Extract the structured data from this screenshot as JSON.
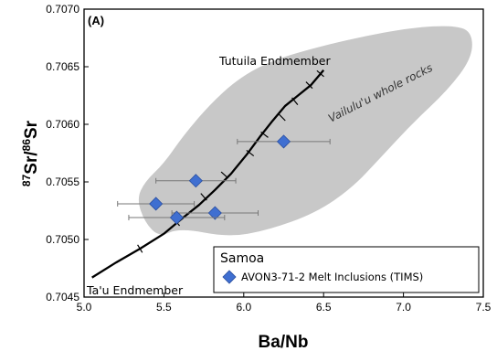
{
  "chart_data": {
    "type": "scatter",
    "panel_label": "(A)",
    "xlabel": "Ba/Nb",
    "ylabel_parts": {
      "sup1": "87",
      "main1": "Sr/",
      "sup2": "86",
      "main2": "Sr"
    },
    "xlim": [
      5.0,
      7.5
    ],
    "ylim": [
      0.7045,
      0.707
    ],
    "x_ticks": [
      "5.0",
      "5.5",
      "6.0",
      "6.5",
      "7.0",
      "7.5"
    ],
    "y_ticks": [
      "0.7045",
      "0.7050",
      "0.7055",
      "0.7060",
      "0.7065",
      "0.7070"
    ],
    "grid": false,
    "legend": {
      "placement": "bottom-right",
      "title": "Samoa",
      "entries": [
        {
          "label": "AVON3-71-2 Melt Inclusions (TIMS)",
          "color": "#3f6fd1",
          "marker": "diamond"
        }
      ]
    },
    "field": {
      "label": "Vailulu'u whole rocks",
      "color": "#c8c8c8",
      "outline": [
        [
          5.6,
          0.7051
        ],
        [
          5.47,
          0.70502
        ],
        [
          5.38,
          0.70515
        ],
        [
          5.33,
          0.70535
        ],
        [
          5.38,
          0.7055
        ],
        [
          5.5,
          0.70566
        ],
        [
          5.62,
          0.7059
        ],
        [
          5.78,
          0.70616
        ],
        [
          5.95,
          0.70638
        ],
        [
          6.15,
          0.70654
        ],
        [
          6.38,
          0.70664
        ],
        [
          6.7,
          0.70675
        ],
        [
          7.05,
          0.70684
        ],
        [
          7.32,
          0.70686
        ],
        [
          7.43,
          0.7068
        ],
        [
          7.43,
          0.70658
        ],
        [
          7.28,
          0.7063
        ],
        [
          7.05,
          0.706
        ],
        [
          6.85,
          0.7057
        ],
        [
          6.68,
          0.70545
        ],
        [
          6.45,
          0.70523
        ],
        [
          6.15,
          0.70508
        ],
        [
          5.9,
          0.70502
        ]
      ]
    },
    "mixing_curve": {
      "points": [
        [
          5.05,
          0.70467
        ],
        [
          5.2,
          0.7048
        ],
        [
          5.35,
          0.70492
        ],
        [
          5.5,
          0.70505
        ],
        [
          5.62,
          0.70519
        ],
        [
          5.72,
          0.7053
        ],
        [
          5.82,
          0.70543
        ],
        [
          5.92,
          0.70557
        ],
        [
          6.02,
          0.70574
        ],
        [
          6.1,
          0.70589
        ],
        [
          6.18,
          0.70603
        ],
        [
          6.26,
          0.70616
        ],
        [
          6.34,
          0.70625
        ],
        [
          6.42,
          0.70634
        ],
        [
          6.5,
          0.70647
        ]
      ],
      "tick_marks": [
        [
          5.35,
          0.70492
        ],
        [
          5.58,
          0.70515
        ],
        [
          5.75,
          0.70537
        ],
        [
          5.88,
          0.70556
        ],
        [
          6.04,
          0.70575
        ],
        [
          6.13,
          0.70591
        ],
        [
          6.24,
          0.70606
        ],
        [
          6.32,
          0.7062
        ],
        [
          6.41,
          0.70634
        ],
        [
          6.48,
          0.70644
        ]
      ],
      "endmembers": [
        {
          "label": "Tutuila Endmember",
          "x": 6.5,
          "y": 0.70647
        },
        {
          "label": "Ta'u Endmember",
          "x": 5.05,
          "y": 0.70467
        }
      ]
    },
    "series": [
      {
        "name": "AVON3-71-2 Melt Inclusions (TIMS)",
        "points": [
          {
            "x": 6.25,
            "y": 0.70585,
            "xerr": 0.29
          },
          {
            "x": 5.7,
            "y": 0.70551,
            "xerr": 0.25
          },
          {
            "x": 5.45,
            "y": 0.70531,
            "xerr": 0.24
          },
          {
            "x": 5.82,
            "y": 0.70523,
            "xerr": 0.27
          },
          {
            "x": 5.58,
            "y": 0.70519,
            "xerr": 0.3
          }
        ]
      }
    ]
  }
}
